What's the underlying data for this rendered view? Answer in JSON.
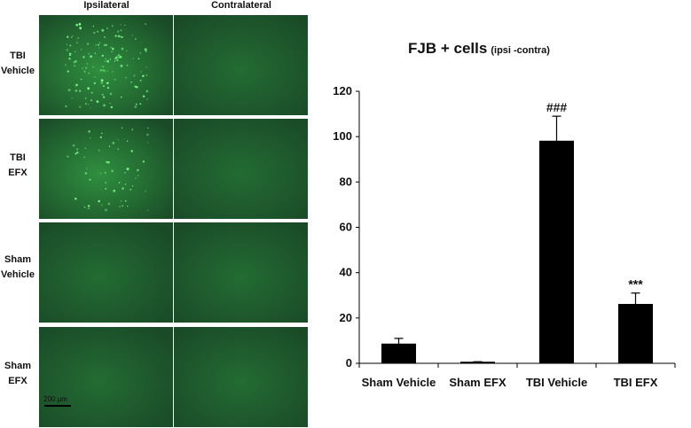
{
  "figure": {
    "columns": [
      "Ipsilateral",
      "Contralateral"
    ],
    "rows": [
      {
        "line1": "TBI",
        "line2": "Vehicle",
        "ipsi_bright": true
      },
      {
        "line1": "TBI",
        "line2": "EFX",
        "ipsi_bright": true
      },
      {
        "line1": "Sham",
        "line2": "Vehicle",
        "ipsi_bright": false
      },
      {
        "line1": "Sham",
        "line2": "EFX",
        "ipsi_bright": false
      }
    ],
    "scale_bar_label": "200 µm",
    "colors": {
      "tissue_dark": "#1a4a27",
      "tissue_mid": "#236b33",
      "cell_glow": "#7dff8a"
    }
  },
  "chart_data": {
    "type": "bar",
    "title": "FJB + cells",
    "title_suffix": "(ipsi -contra)",
    "categories": [
      "Sham Vehicle",
      "Sham EFX",
      "TBI Vehicle",
      "TBI EFX"
    ],
    "values": [
      8.5,
      0.5,
      98,
      26
    ],
    "errors": [
      2.5,
      0.2,
      11,
      5
    ],
    "annotations": [
      "",
      "",
      "###",
      "***"
    ],
    "ylim": [
      0,
      120
    ],
    "yticks": [
      0,
      20,
      40,
      60,
      80,
      100,
      120
    ],
    "xlabel": "",
    "ylabel": "",
    "bar_color": "#000000",
    "grid": false
  }
}
